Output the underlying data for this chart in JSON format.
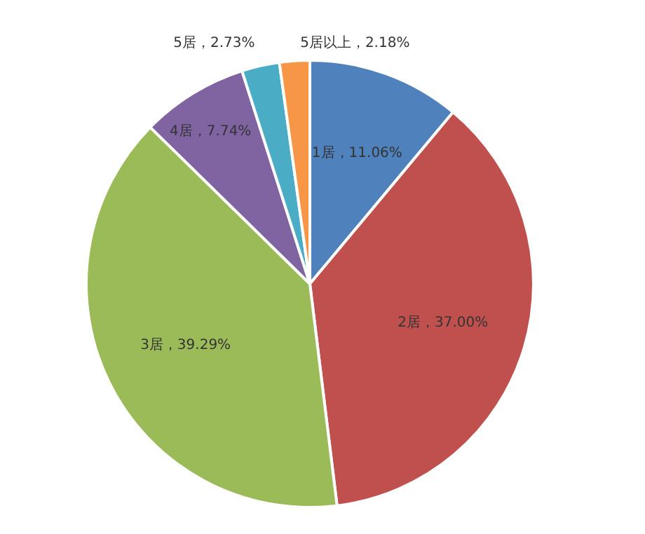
{
  "chart_data": {
    "type": "pie",
    "categories": [
      "1居",
      "2居",
      "3居",
      "4居",
      "5居",
      "5居以上"
    ],
    "values": [
      11.06,
      37.0,
      39.29,
      7.74,
      2.73,
      2.18
    ],
    "colors": [
      "#4f81bd",
      "#c0504d",
      "#9bbb59",
      "#8064a2",
      "#4bacc6",
      "#f79646"
    ],
    "value_labels": [
      "，11.06%",
      "，37.00%",
      "，39.29%",
      "，7.74%",
      "，2.73%",
      "，2.18%"
    ],
    "legend": false
  }
}
